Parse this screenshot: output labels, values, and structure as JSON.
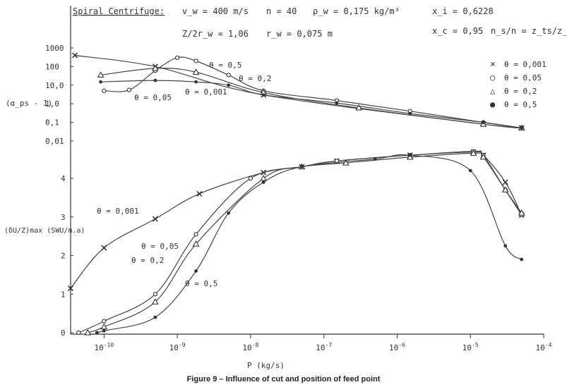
{
  "header": {
    "title": "Spiral Centrifuge:",
    "params": [
      "v_w = 400 m/s",
      "n = 40",
      "ρ_w = 0,175 kg/m³",
      "x_i = 0,6228",
      "Z/2r_w = 1,06",
      "r_w = 0,075 m",
      "x_c = 0,95",
      "n_s/n = z_ts/z_t = θ"
    ]
  },
  "caption": "Figure 9 – Influence of cut and position of feed point",
  "chart_data": {
    "type": "line",
    "xlabel": "P (kg/s)",
    "xscale": "log",
    "xlim": [
      3.5e-11,
      0.0001
    ],
    "x_tick_labels": [
      "10^-10",
      "10^-9",
      "10^-8",
      "10^-7",
      "10^-6",
      "10^-5",
      "10^-4"
    ],
    "legend": {
      "placement": "right",
      "entries": [
        {
          "marker": "×",
          "label": "θ = 0,001"
        },
        {
          "marker": "○",
          "label": "θ = 0,05"
        },
        {
          "marker": "△",
          "label": "θ = 0,2"
        },
        {
          "marker": "●",
          "label": "θ = 0,5"
        }
      ]
    },
    "upper_panel": {
      "ylabel": "(α_ps - 1)",
      "yscale": "log",
      "y_tick_labels": [
        "1000",
        "100",
        "10,0",
        "1,0",
        "0,1",
        "0,01"
      ],
      "series": [
        {
          "name": "θ = 0,001",
          "x": [
            4e-11,
            5e-10,
            1.5e-08,
            1.5e-05,
            5e-05
          ],
          "y": [
            400,
            100,
            3,
            0.08,
            0.05
          ]
        },
        {
          "name": "θ = 0,05",
          "x": [
            1e-10,
            2.2e-10,
            5e-10,
            1e-09,
            1.8e-09,
            5e-09,
            1.5e-08,
            1.5e-07,
            1.5e-06,
            1.5e-05,
            5e-05
          ],
          "y": [
            5,
            5.5,
            60,
            300,
            200,
            35,
            5,
            1.5,
            0.4,
            0.1,
            0.05
          ]
        },
        {
          "name": "θ = 0,2",
          "x": [
            9e-11,
            5e-10,
            1.8e-09,
            1.5e-08,
            3e-07,
            1.5e-05,
            5e-05
          ],
          "y": [
            35,
            80,
            50,
            4,
            0.6,
            0.08,
            0.05
          ]
        },
        {
          "name": "θ = 0,5",
          "x": [
            9e-11,
            5e-10,
            1.8e-09,
            5e-09,
            1.5e-08,
            1.5e-07,
            1.5e-06,
            1.5e-05,
            5e-05
          ],
          "y": [
            15,
            18,
            15,
            10,
            3,
            1.1,
            0.3,
            0.1,
            0.05
          ]
        }
      ],
      "annotations": [
        "θ = 0,5",
        "θ = 0,2",
        "θ = 0,05",
        "θ = 0,001"
      ]
    },
    "lower_panel": {
      "ylabel": "(δU/Z)max (SWU/m.a)",
      "ylim": [
        0,
        4.5
      ],
      "y_tick_labels": [
        "0",
        "1",
        "2",
        "3",
        "4"
      ],
      "series": [
        {
          "name": "θ = 0,001",
          "x": [
            3.5e-11,
            1e-10,
            5e-10,
            2e-09,
            1.5e-08,
            5e-08,
            1.5e-07,
            1.5e-06,
            1.1e-05,
            1.5e-05,
            3e-05,
            5e-05
          ],
          "y": [
            1.15,
            2.2,
            2.95,
            3.6,
            4.15,
            4.3,
            4.45,
            4.6,
            4.68,
            4.6,
            3.9,
            3.05
          ]
        },
        {
          "name": "θ = 0,05",
          "x": [
            4.5e-11,
            1e-10,
            5e-10,
            1.8e-09,
            1e-08,
            5e-08,
            1.5e-07,
            1.5e-06,
            1.1e-05,
            1.5e-05,
            3e-05,
            5e-05
          ],
          "y": [
            0,
            0.3,
            1.0,
            2.55,
            4.0,
            4.3,
            4.45,
            4.6,
            4.7,
            4.6,
            3.7,
            3.05
          ]
        },
        {
          "name": "θ = 0,2",
          "x": [
            6e-11,
            1e-10,
            5e-10,
            1.8e-09,
            1.5e-08,
            5e-08,
            2e-07,
            1.5e-06,
            1.1e-05,
            1.5e-05,
            3e-05,
            5e-05
          ],
          "y": [
            0,
            0.15,
            0.8,
            2.3,
            4.0,
            4.3,
            4.4,
            4.55,
            4.65,
            4.55,
            3.7,
            3.1
          ]
        },
        {
          "name": "θ = 0,5",
          "x": [
            8e-11,
            1e-10,
            5e-10,
            1.8e-09,
            5e-09,
            1.5e-08,
            5e-08,
            5e-07,
            1.5e-06,
            1e-05,
            3e-05,
            5e-05
          ],
          "y": [
            0,
            0.05,
            0.4,
            1.6,
            3.1,
            3.9,
            4.3,
            4.5,
            4.6,
            4.2,
            2.25,
            1.9
          ]
        }
      ],
      "annotations": [
        "θ = 0,001",
        "θ = 0,05",
        "θ = 0,2",
        "θ = 0,5"
      ]
    }
  }
}
